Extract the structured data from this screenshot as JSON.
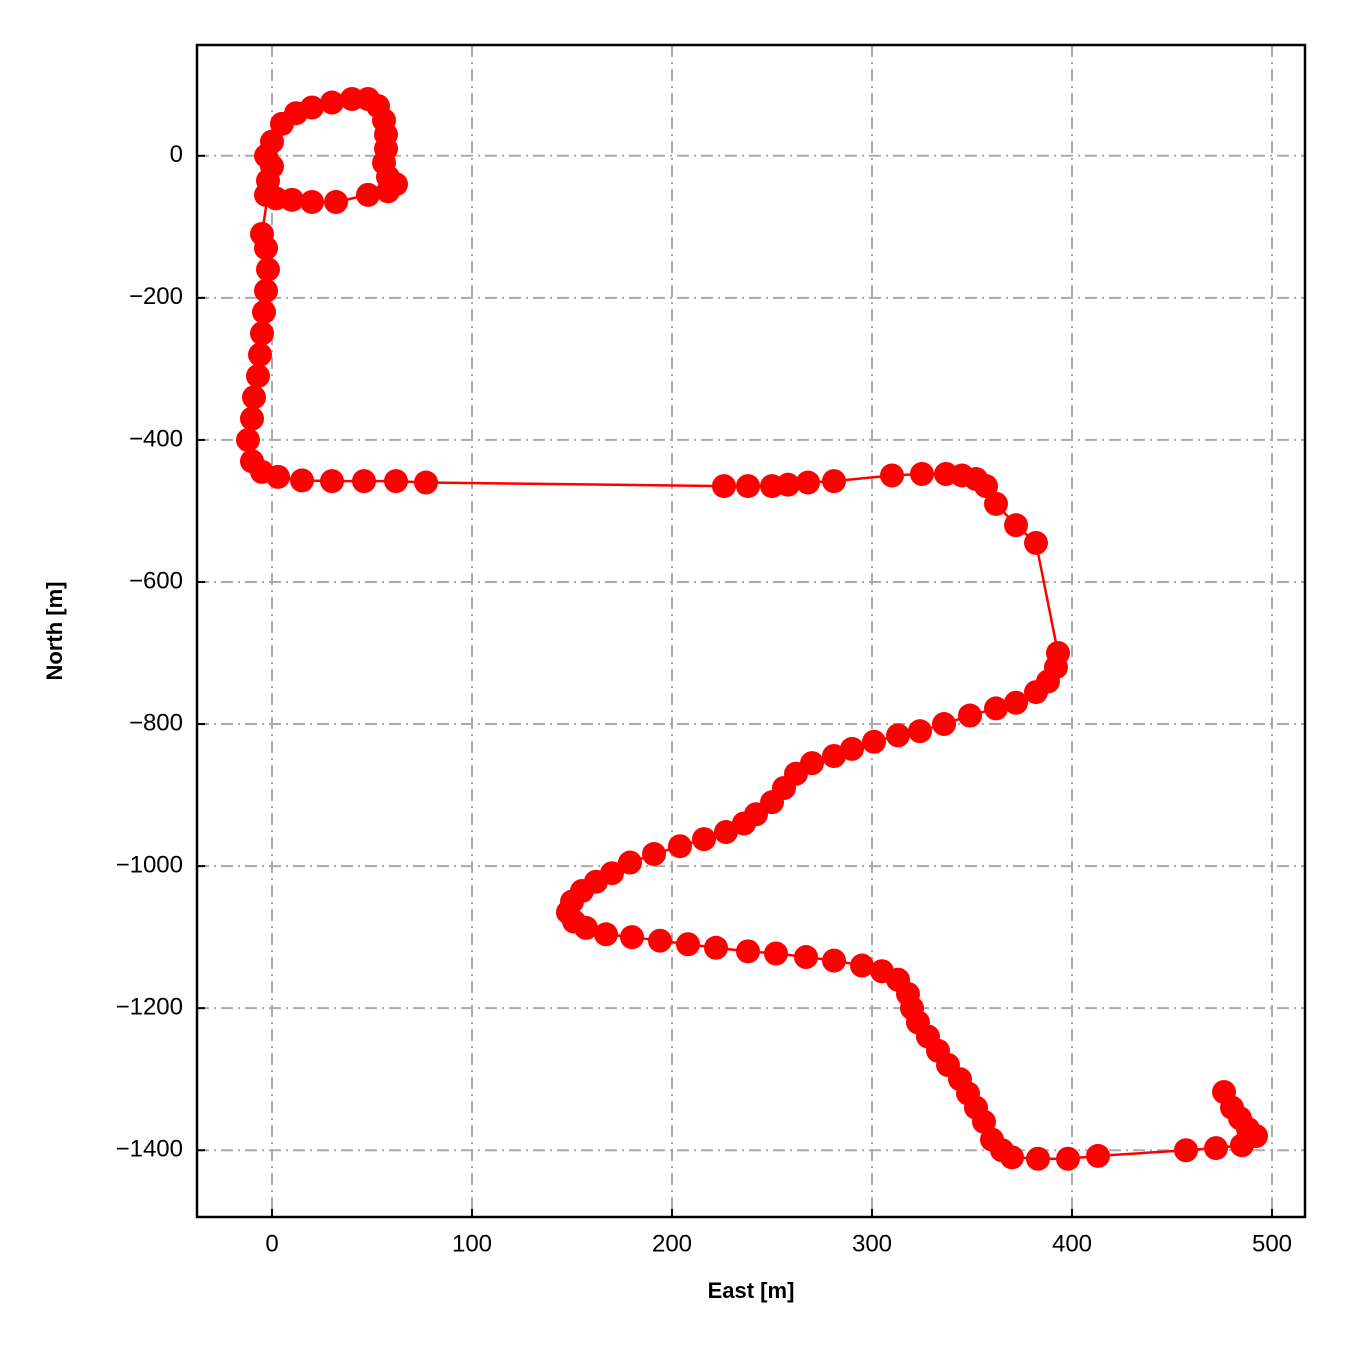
{
  "chart_data": {
    "type": "line",
    "x_label": "East [m]",
    "y_label": "North [m]",
    "color": "#ff0000",
    "markers": true,
    "grid": true,
    "xlim": [
      -37.5,
      516.5
    ],
    "ylim": [
      -1494,
      156
    ],
    "xticks": [
      0,
      100,
      200,
      300,
      400,
      500
    ],
    "yticks": [
      0,
      {
        "value": -200,
        "label": "−200"
      },
      {
        "value": -400,
        "label": "−400"
      },
      {
        "value": -600,
        "label": "−600"
      },
      {
        "value": -800,
        "label": "−800"
      },
      {
        "value": -1000,
        "label": "−1000"
      },
      {
        "value": -1200,
        "label": "−1200"
      },
      {
        "value": -1400,
        "label": "−1400"
      }
    ],
    "x": [
      -3,
      0,
      5,
      12,
      20,
      30,
      40,
      48,
      53,
      56,
      57,
      57,
      56,
      58,
      62,
      58,
      48,
      32,
      20,
      10,
      2,
      -3,
      -2,
      0,
      -5,
      -3,
      -2,
      -3,
      -4,
      -5,
      -6,
      -7,
      -9,
      -10,
      -12,
      -10,
      -5,
      3,
      15,
      30,
      46,
      62,
      77,
      226,
      238,
      250,
      258,
      268,
      281,
      310,
      325,
      337,
      345,
      352,
      357,
      362,
      372,
      382,
      393,
      392,
      388,
      382,
      372,
      362,
      349,
      336,
      324,
      313,
      301,
      290,
      281,
      270,
      262,
      256,
      250,
      242,
      236,
      227,
      216,
      204,
      191,
      179,
      170,
      162,
      155,
      150,
      148,
      151,
      157,
      167,
      180,
      194,
      208,
      222,
      238,
      252,
      267,
      281,
      295,
      305,
      313,
      318,
      320,
      323,
      328,
      333,
      338,
      344,
      348,
      352,
      356,
      360,
      365,
      370,
      383,
      398,
      413,
      457,
      472,
      485,
      492,
      488,
      484,
      480,
      476
    ],
    "y": [
      0,
      20,
      45,
      60,
      68,
      75,
      80,
      80,
      70,
      50,
      30,
      10,
      -10,
      -30,
      -40,
      -50,
      -55,
      -65,
      -65,
      -62,
      -60,
      -55,
      -35,
      -15,
      -110,
      -130,
      -160,
      -190,
      -220,
      -250,
      -280,
      -310,
      -340,
      -370,
      -400,
      -430,
      -445,
      -452,
      -457,
      -458,
      -458,
      -458,
      -460,
      -465,
      -465,
      -465,
      -463,
      -460,
      -458,
      -450,
      -448,
      -448,
      -450,
      -455,
      -465,
      -490,
      -520,
      -545,
      -700,
      -720,
      -740,
      -755,
      -770,
      -778,
      -788,
      -800,
      -810,
      -816,
      -825,
      -835,
      -845,
      -855,
      -870,
      -890,
      -910,
      -927,
      -940,
      -952,
      -962,
      -972,
      -983,
      -995,
      -1010,
      -1022,
      -1035,
      -1050,
      -1065,
      -1078,
      -1087,
      -1096,
      -1100,
      -1105,
      -1110,
      -1115,
      -1120,
      -1123,
      -1128,
      -1133,
      -1140,
      -1148,
      -1160,
      -1180,
      -1200,
      -1220,
      -1240,
      -1260,
      -1280,
      -1300,
      -1320,
      -1340,
      -1360,
      -1385,
      -1400,
      -1410,
      -1412,
      -1412,
      -1408,
      -1400,
      -1397,
      -1393,
      -1380,
      -1370,
      -1355,
      -1340,
      -1318
    ]
  }
}
